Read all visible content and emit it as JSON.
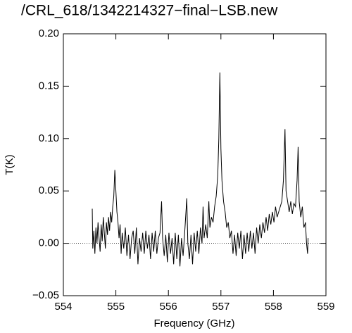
{
  "chart_data": {
    "type": "line",
    "title": "/CRL_618/1342214327−final−LSB.new",
    "xlabel": "Frequency (GHz)",
    "ylabel": "T(K)",
    "color": "#000000",
    "xlim": [
      554,
      559
    ],
    "xticks": [
      554,
      555,
      556,
      557,
      558,
      559
    ],
    "ylim": [
      -0.05,
      0.2
    ],
    "yticks": [
      {
        "value": -0.05,
        "label": "−0.05"
      },
      {
        "value": 0,
        "label": "0.00"
      },
      0.05,
      {
        "value": 0.1,
        "label": "0.10"
      },
      0.15,
      {
        "value": 0.2,
        "label": "0.20"
      }
    ],
    "zero_line": 0,
    "x": [
      554.55,
      554.56,
      554.58,
      554.6,
      554.62,
      554.64,
      554.66,
      554.68,
      554.7,
      554.72,
      554.74,
      554.76,
      554.78,
      554.8,
      554.82,
      554.84,
      554.86,
      554.88,
      554.9,
      554.92,
      554.94,
      554.96,
      554.98,
      555.0,
      555.02,
      555.04,
      555.06,
      555.08,
      555.1,
      555.12,
      555.15,
      555.18,
      555.21,
      555.24,
      555.27,
      555.3,
      555.33,
      555.36,
      555.39,
      555.42,
      555.45,
      555.48,
      555.51,
      555.54,
      555.57,
      555.6,
      555.63,
      555.66,
      555.69,
      555.72,
      555.75,
      555.78,
      555.81,
      555.84,
      555.87,
      555.89,
      555.92,
      555.95,
      555.98,
      556.01,
      556.04,
      556.07,
      556.1,
      556.13,
      556.16,
      556.19,
      556.22,
      556.25,
      556.28,
      556.31,
      556.35,
      556.37,
      556.4,
      556.43,
      556.46,
      556.49,
      556.52,
      556.55,
      556.58,
      556.61,
      556.64,
      556.66,
      556.68,
      556.71,
      556.74,
      556.77,
      556.79,
      556.82,
      556.85,
      556.88,
      556.91,
      556.94,
      556.96,
      556.98,
      557.0,
      557.02,
      557.05,
      557.08,
      557.11,
      557.14,
      557.17,
      557.2,
      557.23,
      557.26,
      557.29,
      557.32,
      557.35,
      557.38,
      557.41,
      557.44,
      557.47,
      557.5,
      557.53,
      557.56,
      557.59,
      557.62,
      557.65,
      557.68,
      557.71,
      557.74,
      557.77,
      557.8,
      557.83,
      557.86,
      557.89,
      557.92,
      557.95,
      557.98,
      558.01,
      558.04,
      558.07,
      558.1,
      558.13,
      558.16,
      558.19,
      558.22,
      558.24,
      558.27,
      558.3,
      558.33,
      558.36,
      558.39,
      558.42,
      558.45,
      558.47,
      558.49,
      558.52,
      558.55,
      558.58,
      558.61,
      558.63,
      558.65,
      558.66
    ],
    "values": [
      0.033,
      -0.005,
      0.012,
      -0.01,
      0.015,
      0.0,
      0.02,
      0.005,
      -0.008,
      0.018,
      0.002,
      0.025,
      0.01,
      -0.005,
      0.02,
      0.008,
      0.025,
      0.012,
      0.03,
      0.02,
      0.035,
      0.045,
      0.07,
      0.05,
      0.03,
      0.02,
      0.005,
      0.018,
      -0.01,
      0.01,
      -0.005,
      0.015,
      -0.012,
      0.008,
      -0.015,
      0.005,
      0.012,
      -0.01,
      0.015,
      -0.02,
      0.005,
      -0.008,
      0.01,
      -0.01,
      0.012,
      -0.005,
      0.008,
      -0.015,
      0.01,
      -0.008,
      0.012,
      -0.01,
      0.005,
      0.01,
      0.04,
      0.005,
      -0.012,
      0.008,
      -0.018,
      0.01,
      -0.01,
      0.005,
      -0.02,
      0.01,
      -0.015,
      0.008,
      -0.022,
      0.005,
      -0.012,
      0.01,
      0.043,
      0.0,
      -0.015,
      0.008,
      -0.02,
      0.01,
      -0.008,
      0.012,
      -0.01,
      0.015,
      0.0,
      0.035,
      0.005,
      0.018,
      0.005,
      0.04,
      0.015,
      0.025,
      0.02,
      0.035,
      0.045,
      0.065,
      0.1,
      0.163,
      0.09,
      0.06,
      0.04,
      0.03,
      0.015,
      0.02,
      0.005,
      0.012,
      -0.01,
      0.008,
      -0.012,
      0.01,
      -0.005,
      0.012,
      -0.015,
      0.008,
      -0.01,
      0.01,
      -0.008,
      0.012,
      -0.005,
      0.01,
      -0.01,
      0.015,
      0.0,
      0.018,
      0.005,
      0.02,
      0.01,
      0.025,
      0.012,
      0.028,
      0.018,
      0.03,
      0.02,
      0.035,
      0.025,
      0.03,
      0.035,
      0.04,
      0.06,
      0.109,
      0.05,
      0.04,
      0.03,
      0.04,
      0.028,
      0.038,
      0.035,
      0.06,
      0.092,
      0.04,
      0.025,
      0.035,
      0.015,
      0.02,
      0.0,
      -0.01,
      0.005
    ]
  }
}
